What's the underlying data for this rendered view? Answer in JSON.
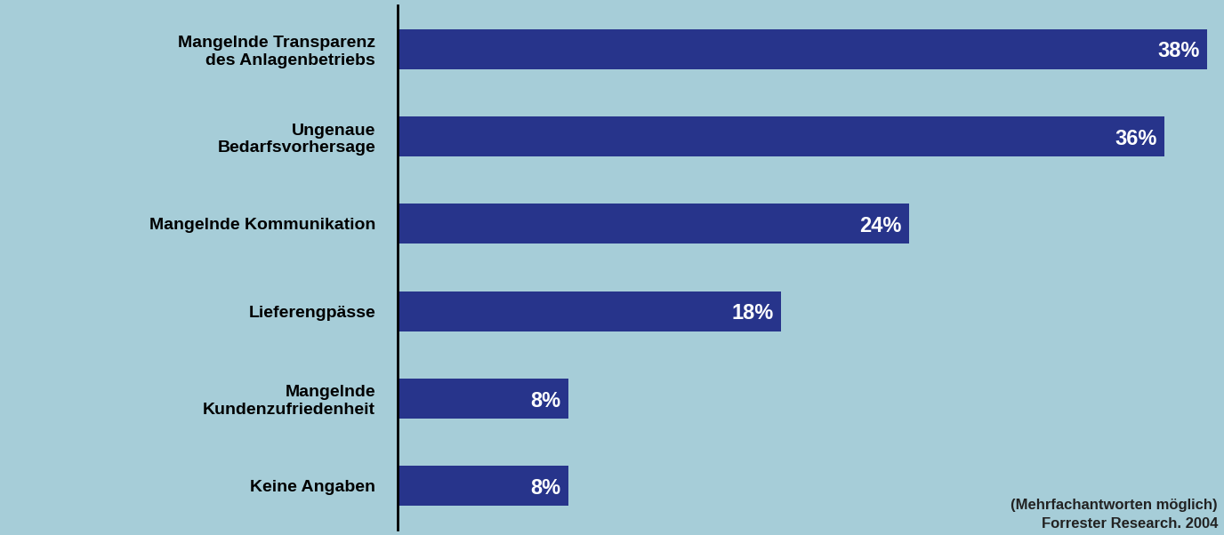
{
  "chart_data": {
    "type": "bar",
    "orientation": "horizontal",
    "categories": [
      "Mangelnde Transparenz\ndes Anlagenbetriebs",
      "Ungenaue\nBedarfsvorhersage",
      "Mangelnde Kommunikation",
      "Lieferengpässe",
      "Mangelnde\nKundenzufriedenheit",
      "Keine Angaben"
    ],
    "values": [
      38,
      36,
      24,
      18,
      8,
      8
    ],
    "value_labels": [
      "38%",
      "36%",
      "24%",
      "18%",
      "8%",
      "8%"
    ],
    "data_labels": true,
    "color": "#27348b",
    "xlim": [
      0,
      38.5
    ],
    "tick_labels": "y",
    "grid": false,
    "annotations": [
      "(Mehrfachantworten möglich)",
      "Forrester Research. 2004"
    ]
  }
}
